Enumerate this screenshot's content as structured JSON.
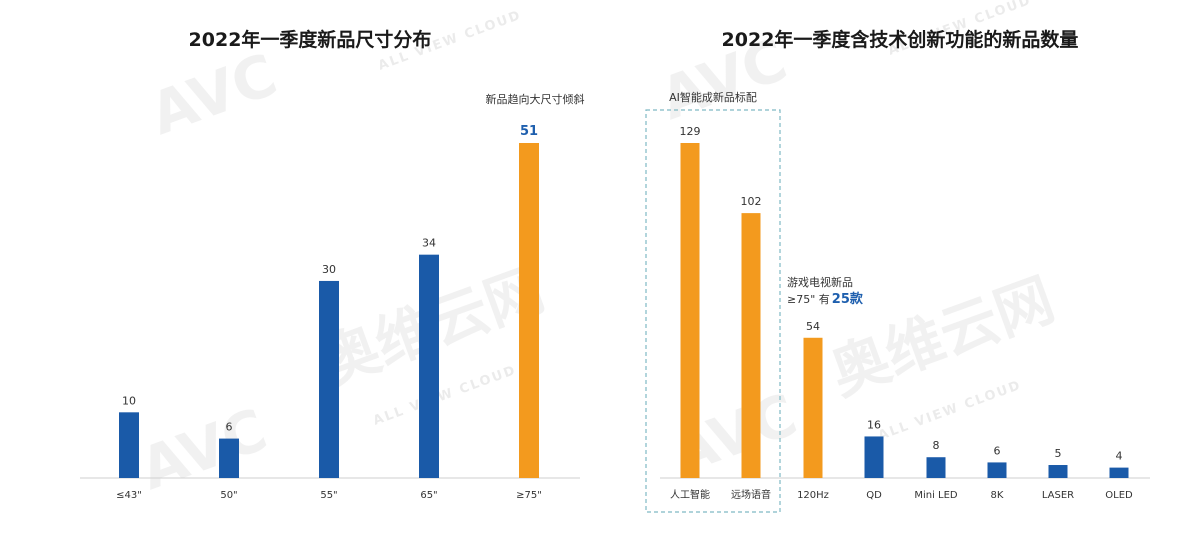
{
  "chart_data": [
    {
      "type": "bar",
      "title": "2022年一季度新品尺寸分布",
      "annotation": "新品趋向大尺寸倾斜",
      "categories": [
        "≤43\"",
        "50\"",
        "55\"",
        "65\"",
        "≥75\""
      ],
      "values": [
        10,
        6,
        30,
        34,
        51
      ],
      "value_labels": [
        "10",
        "6",
        "30",
        "34",
        "51"
      ],
      "colors": [
        "#1a5aa8",
        "#1a5aa8",
        "#1a5aa8",
        "#1a5aa8",
        "#f39a1e"
      ],
      "ylim": [
        0,
        51
      ]
    },
    {
      "type": "bar",
      "title": "2022年一季度含技术创新功能的新品数量",
      "box_label": "AI智能成新品标配",
      "note_line1": "游戏电视新品",
      "note_line2": "≥75\" 有",
      "note_highlight": "25款",
      "categories": [
        "人工智能",
        "远场语音",
        "120Hz",
        "QD",
        "Mini LED",
        "8K",
        "LASER",
        "OLED"
      ],
      "values": [
        129,
        102,
        54,
        16,
        8,
        6,
        5,
        4
      ],
      "value_labels": [
        "129",
        "102",
        "54",
        "16",
        "8",
        "6",
        "5",
        "4"
      ],
      "colors": [
        "#f39a1e",
        "#f39a1e",
        "#f39a1e",
        "#1a5aa8",
        "#1a5aa8",
        "#1a5aa8",
        "#1a5aa8",
        "#1a5aa8"
      ],
      "ylim": [
        0,
        129
      ]
    }
  ],
  "watermark": {
    "logo": "AVC",
    "cn": "奥维云网",
    "en": "ALL VIEW CLOUD"
  }
}
